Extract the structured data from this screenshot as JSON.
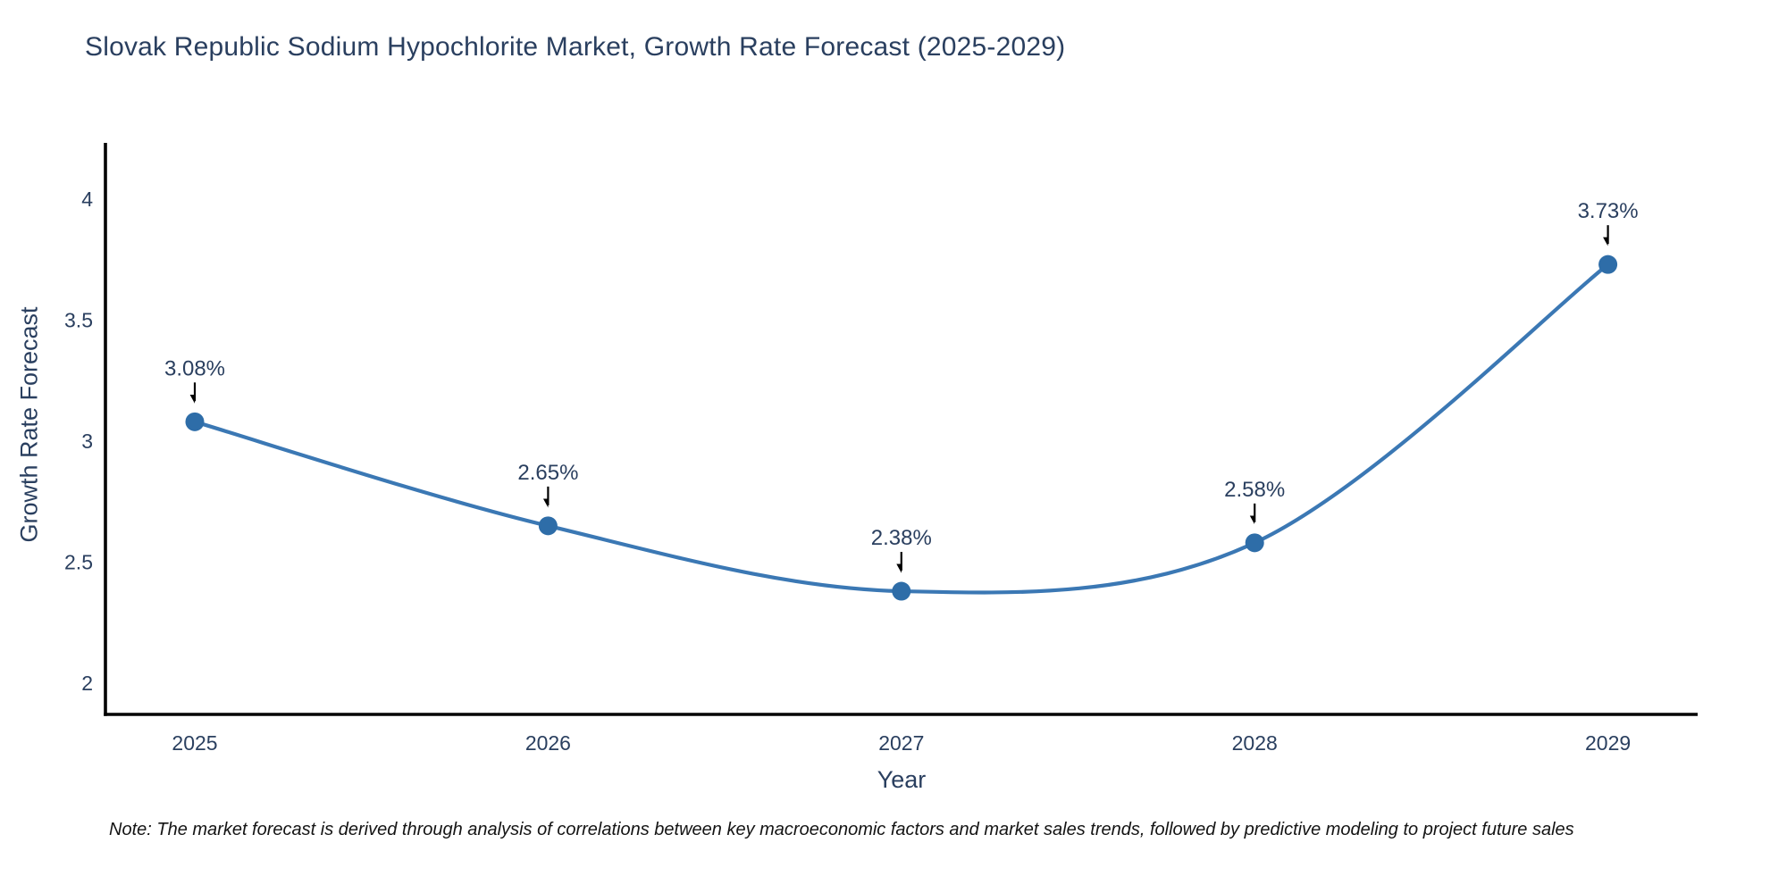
{
  "page": {
    "background": "#ffffff"
  },
  "chart_data": {
    "type": "line",
    "title": "Slovak Republic Sodium Hypochlorite Market, Growth Rate Forecast (2025-2029)",
    "xlabel": "Year",
    "ylabel": "Growth Rate Forecast",
    "x": [
      2025,
      2026,
      2027,
      2028,
      2029
    ],
    "values": [
      3.08,
      2.65,
      2.38,
      2.58,
      3.73
    ],
    "point_labels": [
      "3.08%",
      "2.65%",
      "2.38%",
      "2.58%",
      "3.73%"
    ],
    "xticks": [
      "2025",
      "2026",
      "2027",
      "2028",
      "2029"
    ],
    "yticks": [
      2,
      2.5,
      3,
      3.5,
      4
    ],
    "ytick_labels": [
      "2",
      "2.5",
      "3",
      "3.5",
      "4"
    ],
    "ylim": [
      1.87,
      4.24
    ],
    "line_shape": "spline",
    "grid": false,
    "legend": "none",
    "line_color": "#3b78b4",
    "marker_color": "#2e6da8",
    "axis_line_color": "#000000",
    "arrow_color": "#000000",
    "text_color": "#2a3f5f"
  },
  "note": {
    "text": "Note: The market forecast is derived through analysis of correlations between key macroeconomic factors and market sales trends, followed by predictive modeling to project future sales"
  }
}
